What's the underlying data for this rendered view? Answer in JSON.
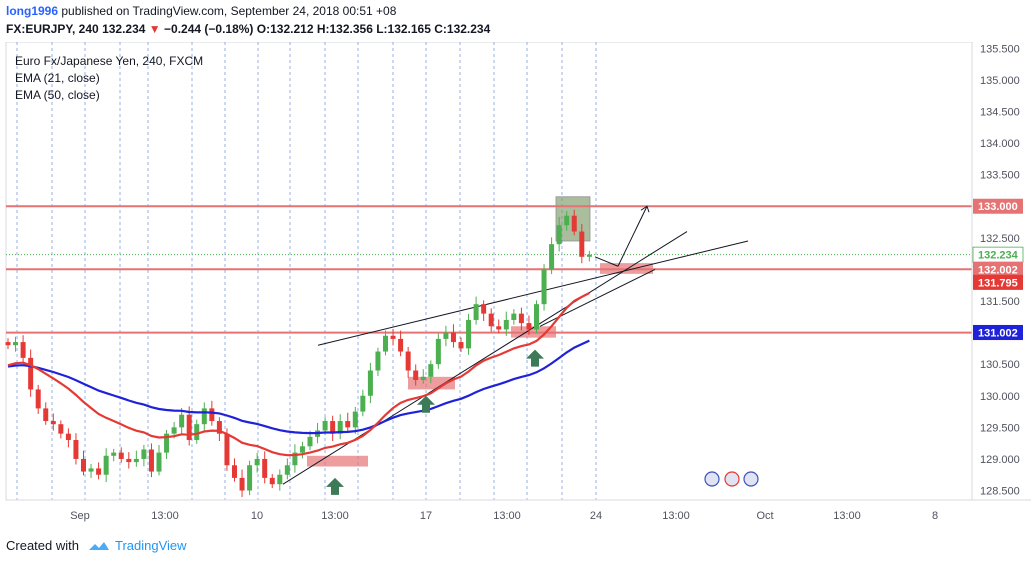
{
  "header": {
    "author": "long1996",
    "published_text": " published on TradingView.com, September 24, 2018 00:51 +08",
    "symbol": "FX:EURJPY, 240",
    "last": "132.234",
    "change": "−0.244 (−0.18%)",
    "ohlc": "O:132.212 H:132.356 L:132.165 C:132.234"
  },
  "legend": [
    "Euro Fx/Japanese Yen, 240, FXCM",
    "EMA (21, close)",
    "EMA (50, close)"
  ],
  "footer": {
    "created_with": "Created with",
    "brand": "TradingView"
  },
  "colors": {
    "up": "#4caf50",
    "down": "#e53935",
    "ema21": "#e53935",
    "ema50": "#1e22d8",
    "zone": "#e57373",
    "arrow": "#3d7a57"
  },
  "chart_data": {
    "type": "candlestick",
    "timeframe": "240",
    "ylim": [
      128.35,
      135.6
    ],
    "y_ticks": [
      "128.500",
      "129.000",
      "129.500",
      "130.000",
      "130.500",
      "131.500",
      "132.000",
      "132.500",
      "133.000",
      "133.500",
      "134.000",
      "134.500",
      "135.000",
      "135.500"
    ],
    "x_labels": [
      "Sep",
      "13:00",
      "10",
      "13:00",
      "17",
      "13:00",
      "24",
      "13:00",
      "Oct",
      "13:00",
      "8"
    ],
    "price_labels": [
      {
        "text": "133.000",
        "value": 133.0,
        "kind": "level"
      },
      {
        "text": "132.234",
        "value": 132.234,
        "kind": "last"
      },
      {
        "text": "132.002",
        "value": 132.002,
        "kind": "level"
      },
      {
        "text": "131.795",
        "value": 131.795,
        "kind": "ema21"
      },
      {
        "text": "131.000",
        "value": 131.0,
        "kind": "level"
      },
      {
        "text": "131.002",
        "value": 131.002,
        "kind": "ema50"
      }
    ],
    "horizontal_levels": [
      133.0,
      132.002,
      131.0
    ],
    "closes": [
      130.8,
      130.85,
      130.6,
      130.1,
      129.8,
      129.6,
      129.55,
      129.4,
      129.3,
      129.0,
      128.8,
      128.85,
      128.75,
      129.05,
      129.1,
      129.0,
      128.95,
      129.0,
      129.15,
      128.8,
      129.1,
      129.4,
      129.5,
      129.7,
      129.3,
      129.55,
      129.8,
      129.6,
      129.4,
      128.9,
      128.7,
      128.5,
      128.9,
      129.0,
      128.7,
      128.6,
      128.75,
      128.9,
      129.1,
      129.2,
      129.35,
      129.45,
      129.6,
      129.4,
      129.6,
      129.5,
      129.75,
      130.0,
      130.4,
      130.7,
      130.95,
      130.9,
      130.7,
      130.4,
      130.25,
      130.3,
      130.5,
      130.9,
      131.0,
      130.85,
      130.75,
      131.2,
      131.45,
      131.3,
      131.1,
      131.05,
      131.2,
      131.3,
      131.15,
      131.05,
      131.45,
      132.0,
      132.4,
      132.7,
      132.85,
      132.6,
      132.2,
      132.234
    ]
  },
  "annotations": {
    "zones": [
      "131.0 support zone",
      "132.0 retest zone",
      "trendline touch zones"
    ],
    "arrows": [
      "up-arrow",
      "up-arrow",
      "up-arrow"
    ]
  }
}
